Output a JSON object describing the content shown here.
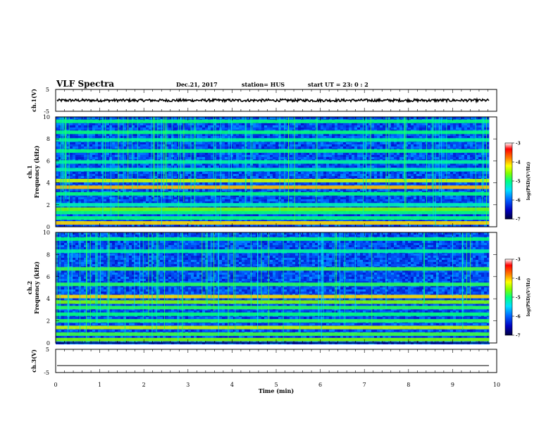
{
  "header": {
    "title": "VLF Spectra",
    "date": "Dec.21, 2017",
    "station": "station= HUS",
    "start": "start  UT =   23: 0  : 2"
  },
  "colors": {
    "background": "#ffffff",
    "axis": "#000000",
    "colormap": [
      "#000040",
      "#0000c0",
      "#0060ff",
      "#00e0ff",
      "#00ff80",
      "#80ff00",
      "#ffff00",
      "#ff8000",
      "#ff0000",
      "#ffffff"
    ]
  },
  "chart_data": [
    {
      "type": "line",
      "id": "ch1-waveform",
      "ylabel": "ch.1(V)",
      "ylim": [
        -5,
        5
      ],
      "y_ticks": [
        "5",
        "-5"
      ],
      "x_range": [
        0,
        10
      ],
      "description_values": {
        "mean": 0,
        "amplitude": 0.6,
        "data_end_min": 9.83
      }
    },
    {
      "type": "heatmap",
      "id": "ch1-spectrogram",
      "ylabel": "ch.1 Frequency (kHz)",
      "ylim": [
        0,
        10
      ],
      "y_ticks": [
        "0",
        "2",
        "4",
        "6",
        "8",
        "10"
      ],
      "x_range": [
        0,
        10
      ],
      "data_end_min": 9.83,
      "bands_khz": [
        {
          "f": 0.35,
          "level": 0.7
        },
        {
          "f": 0.8,
          "level": 0.45
        },
        {
          "f": 1.3,
          "level": 0.45
        },
        {
          "f": 1.6,
          "level": 0.55
        },
        {
          "f": 2.0,
          "level": 0.4
        },
        {
          "f": 3.0,
          "level": 0.45
        },
        {
          "f": 3.6,
          "level": 0.72
        },
        {
          "f": 4.2,
          "level": 0.62
        },
        {
          "f": 5.2,
          "level": 0.4
        },
        {
          "f": 5.9,
          "level": 0.42
        },
        {
          "f": 6.9,
          "level": 0.45
        },
        {
          "f": 7.9,
          "level": 0.42
        },
        {
          "f": 8.6,
          "level": 0.45
        },
        {
          "f": 9.6,
          "level": 0.45
        }
      ],
      "colorbar": {
        "label": "log(PSD)(V²/Hz)",
        "ticks": [
          "-3",
          "-4",
          "-5",
          "-6",
          "-7"
        ],
        "range": [
          -7,
          -3
        ]
      }
    },
    {
      "type": "heatmap",
      "id": "ch2-spectrogram",
      "ylabel": "ch.2 Frequency (kHz)",
      "ylim": [
        0,
        10
      ],
      "y_ticks": [
        "0",
        "2",
        "4",
        "6",
        "8",
        "10"
      ],
      "x_range": [
        0,
        10
      ],
      "data_end_min": 9.83,
      "bands_khz": [
        {
          "f": 0.3,
          "level": 0.55
        },
        {
          "f": 0.8,
          "level": 0.5
        },
        {
          "f": 1.4,
          "level": 0.62
        },
        {
          "f": 2.0,
          "level": 0.48
        },
        {
          "f": 2.6,
          "level": 0.45
        },
        {
          "f": 3.2,
          "level": 0.48
        },
        {
          "f": 3.7,
          "level": 0.55
        },
        {
          "f": 4.2,
          "level": 0.7
        },
        {
          "f": 5.3,
          "level": 0.48
        },
        {
          "f": 6.7,
          "level": 0.5
        },
        {
          "f": 8.3,
          "level": 0.42
        },
        {
          "f": 9.4,
          "level": 0.45
        }
      ],
      "colorbar": {
        "label": "log(PSD)(V²/Hz)",
        "ticks": [
          "-3",
          "-4",
          "-5",
          "-6",
          "-7"
        ],
        "range": [
          -7,
          -3
        ]
      }
    },
    {
      "type": "line",
      "id": "ch3-waveform",
      "ylabel": "ch.3(V)",
      "ylim": [
        -5,
        5
      ],
      "y_ticks": [
        "5",
        "-5"
      ],
      "x_range": [
        0,
        10
      ],
      "description_values": {
        "mean": -2,
        "amplitude": 0.0,
        "data_end_min": 9.83
      }
    }
  ],
  "x_axis": {
    "label": "Time  (min)",
    "ticks": [
      "0",
      "1",
      "2",
      "3",
      "4",
      "5",
      "6",
      "7",
      "8",
      "9",
      "10"
    ]
  }
}
